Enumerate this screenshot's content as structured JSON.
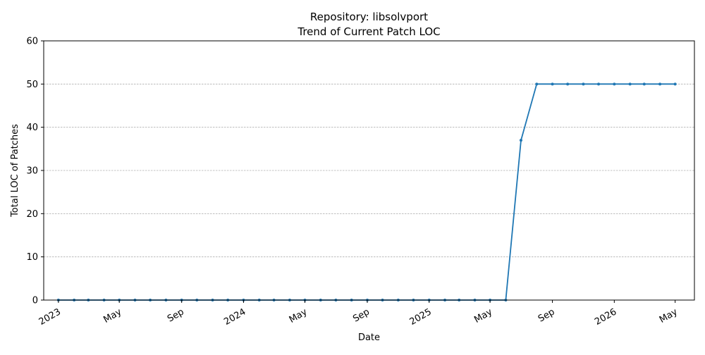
{
  "chart_data": {
    "type": "line",
    "title": "Repository: libsolvport",
    "subtitle": "Trend of Current Patch LOC",
    "xlabel": "Date",
    "ylabel": "Total LOC of Patches",
    "ylim": [
      0,
      60
    ],
    "yticks": [
      0,
      10,
      20,
      30,
      40,
      50,
      60
    ],
    "xlim": [
      "2022-12-03",
      "2026-06-08"
    ],
    "xticks": [
      {
        "date": "2023-01-01",
        "label": "2023"
      },
      {
        "date": "2023-05-01",
        "label": "May"
      },
      {
        "date": "2023-09-01",
        "label": "Sep"
      },
      {
        "date": "2024-01-01",
        "label": "2024"
      },
      {
        "date": "2024-05-01",
        "label": "May"
      },
      {
        "date": "2024-09-01",
        "label": "Sep"
      },
      {
        "date": "2025-01-01",
        "label": "2025"
      },
      {
        "date": "2025-05-01",
        "label": "May"
      },
      {
        "date": "2025-09-01",
        "label": "Sep"
      },
      {
        "date": "2026-01-01",
        "label": "2026"
      },
      {
        "date": "2026-05-01",
        "label": "May"
      }
    ],
    "grid": "horizontal dashed",
    "color": "#1f77b4",
    "series": [
      {
        "x": [
          "2023-01-01",
          "2023-02-01",
          "2023-03-01",
          "2023-04-01",
          "2023-05-01",
          "2023-06-01",
          "2023-07-01",
          "2023-08-01",
          "2023-09-01",
          "2023-10-01",
          "2023-11-01",
          "2023-12-01",
          "2024-01-01",
          "2024-02-01",
          "2024-03-01",
          "2024-04-01",
          "2024-05-01",
          "2024-06-01",
          "2024-07-01",
          "2024-08-01",
          "2024-09-01",
          "2024-10-01",
          "2024-11-01",
          "2024-12-01",
          "2025-01-01",
          "2025-02-01",
          "2025-03-01",
          "2025-04-01",
          "2025-05-01",
          "2025-06-01",
          "2025-07-01",
          "2025-08-01",
          "2025-09-01",
          "2025-10-01",
          "2025-11-01",
          "2025-12-01",
          "2026-01-01",
          "2026-02-01",
          "2026-03-01",
          "2026-04-01",
          "2026-05-01"
        ],
        "values": [
          0,
          0,
          0,
          0,
          0,
          0,
          0,
          0,
          0,
          0,
          0,
          0,
          0,
          0,
          0,
          0,
          0,
          0,
          0,
          0,
          0,
          0,
          0,
          0,
          0,
          0,
          0,
          0,
          0,
          0,
          37,
          50,
          50,
          50,
          50,
          50,
          50,
          50,
          50,
          50,
          50
        ]
      }
    ]
  }
}
